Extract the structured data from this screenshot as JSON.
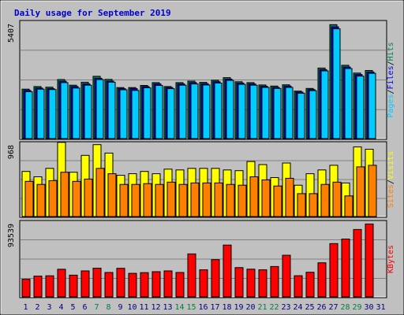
{
  "chart_data": {
    "type": "bar",
    "title": "Daily usage for September 2019",
    "days": [
      "1",
      "2",
      "3",
      "4",
      "5",
      "6",
      "7",
      "8",
      "9",
      "10",
      "11",
      "12",
      "13",
      "14",
      "15",
      "16",
      "17",
      "18",
      "19",
      "20",
      "21",
      "22",
      "23",
      "24",
      "25",
      "26",
      "27",
      "28",
      "29",
      "30",
      "31"
    ],
    "weekend_days": [
      7,
      8,
      14,
      15,
      21,
      22,
      28,
      29
    ],
    "colors": {
      "background": "#c0c0c0",
      "grid": "#808080",
      "title": "#0000cc",
      "hits": "#00805c",
      "files": "#0000ff",
      "pages": "#00ccff",
      "visits": "#ffff00",
      "sites": "#ff8000",
      "kbytes": "#ff0000",
      "weekday_label": "#000080",
      "weekend_label": "#008040"
    },
    "panels": [
      {
        "id": "hits-files-pages",
        "max_label": "5407",
        "ymax": 5407,
        "legend": [
          {
            "text": "Pages",
            "color": "#00ccff"
          },
          {
            "text": "/",
            "color": "#000000"
          },
          {
            "text": "Files",
            "color": "#0000ff"
          },
          {
            "text": "/",
            "color": "#000000"
          },
          {
            "text": "Hits",
            "color": "#00805c"
          }
        ],
        "series": [
          {
            "name": "Hits",
            "color": "#00805c",
            "values": [
              2280,
              2400,
              2370,
              2720,
              2460,
              2600,
              2870,
              2730,
              2350,
              2350,
              2450,
              2580,
              2400,
              2580,
              2650,
              2590,
              2690,
              2810,
              2620,
              2580,
              2470,
              2420,
              2480,
              2190,
              2310,
              3250,
              5250,
              3380,
              3020,
              3140,
              0
            ]
          },
          {
            "name": "Files",
            "color": "#0000ff",
            "values": [
              2220,
              2330,
              2300,
              2640,
              2400,
              2520,
              2780,
              2650,
              2300,
              2300,
              2400,
              2520,
              2350,
              2520,
              2580,
              2530,
              2620,
              2740,
              2560,
              2520,
              2410,
              2360,
              2420,
              2140,
              2260,
              3180,
              5150,
              3300,
              2950,
              3070,
              0
            ]
          },
          {
            "name": "Pages",
            "color": "#00ccff",
            "values": [
              2160,
              2280,
              2260,
              2580,
              2330,
              2460,
              2720,
              2600,
              2250,
              2220,
              2340,
              2450,
              2300,
              2460,
              2520,
              2470,
              2560,
              2680,
              2500,
              2460,
              2360,
              2310,
              2360,
              2090,
              2210,
              3120,
              5060,
              3230,
              2880,
              3010,
              0
            ]
          }
        ]
      },
      {
        "id": "visits-sites",
        "max_label": "968",
        "ymax": 968,
        "legend": [
          {
            "text": "Sites",
            "color": "#ff8000"
          },
          {
            "text": "/",
            "color": "#000000"
          },
          {
            "text": "Visits",
            "color": "#ffff00"
          }
        ],
        "series": [
          {
            "name": "Visits",
            "color": "#ffff00",
            "values": [
              590,
              520,
              630,
              970,
              580,
              800,
              940,
              830,
              540,
              560,
              590,
              560,
              620,
              610,
              630,
              630,
              630,
              610,
              600,
              720,
              680,
              510,
              700,
              410,
              560,
              610,
              670,
              440,
              910,
              880,
              0
            ]
          },
          {
            "name": "Sites",
            "color": "#ff8000",
            "values": [
              460,
              420,
              470,
              580,
              460,
              490,
              630,
              560,
              420,
              420,
              430,
              420,
              450,
              420,
              440,
              440,
              440,
              420,
              410,
              520,
              480,
              400,
              500,
              300,
              300,
              420,
              450,
              270,
              650,
              670,
              0
            ]
          }
        ]
      },
      {
        "id": "kbytes",
        "max_label": "93539",
        "ymax": 93539,
        "legend": [
          {
            "text": "KBytes",
            "color": "#ff0000"
          }
        ],
        "series": [
          {
            "name": "KBytes",
            "color": "#ff0000",
            "values": [
              21800,
              25700,
              26100,
              34200,
              26900,
              32200,
              35600,
              30200,
              35400,
              29100,
              30000,
              31200,
              32200,
              30200,
              53200,
              33500,
              46100,
              64100,
              36200,
              34300,
              33500,
              37600,
              51500,
              26200,
              30500,
              42200,
              66000,
              71500,
              83400,
              90200,
              0
            ]
          }
        ]
      }
    ]
  }
}
